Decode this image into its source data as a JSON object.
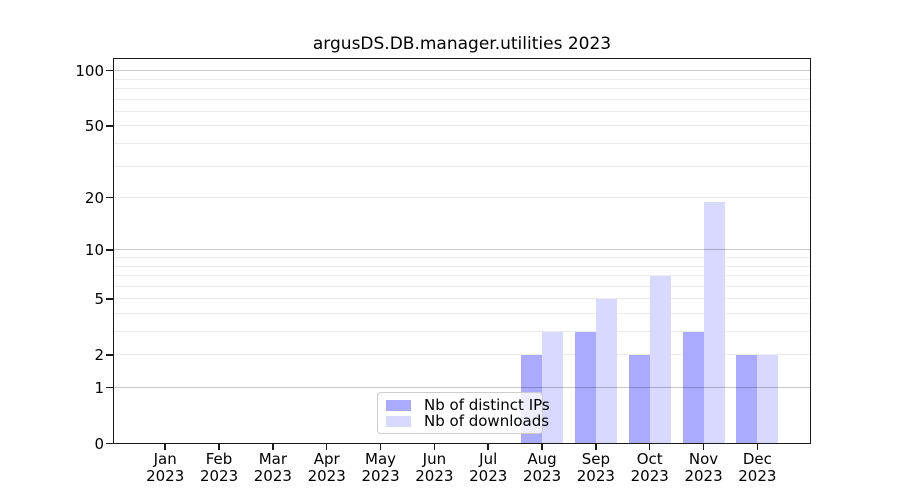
{
  "chart_data": {
    "type": "bar",
    "title": "argusDS.DB.manager.utilities 2023",
    "categories": [
      "Jan",
      "Feb",
      "Mar",
      "Apr",
      "May",
      "Jun",
      "Jul",
      "Aug",
      "Sep",
      "Oct",
      "Nov",
      "Dec"
    ],
    "category_year": "2023",
    "series": [
      {
        "name": "Nb of distinct IPs",
        "color": "#aaaaff",
        "values": [
          0,
          0,
          0,
          0,
          0,
          0,
          0,
          2,
          3,
          2,
          3,
          2
        ]
      },
      {
        "name": "Nb of downloads",
        "color": "#d9d9ff",
        "values": [
          0,
          0,
          0,
          0,
          0,
          0,
          0,
          3,
          5,
          7,
          19,
          2
        ]
      }
    ],
    "xlabel": "",
    "ylabel": "",
    "y_scale": "log1p",
    "ylim": [
      0,
      117.2
    ],
    "y_ticks": [
      0,
      1,
      2,
      5,
      10,
      20,
      50,
      100
    ],
    "y_tick_labels": [
      "0",
      "1",
      "2",
      "5",
      "10",
      "20",
      "50",
      "100"
    ],
    "major_gridlines": [
      1,
      10,
      100
    ],
    "minor_gridlines": [
      2,
      3,
      4,
      5,
      6,
      7,
      8,
      9,
      20,
      30,
      40,
      50,
      60,
      70,
      80,
      90
    ],
    "grid": true,
    "legend_position": "lower center-left inside plot"
  },
  "colors": {
    "axis": "#1a1a1a",
    "major_grid": "rgba(0,0,0,0.22)",
    "minor_grid": "rgba(0,0,0,0.08)",
    "background": "#ffffff"
  }
}
